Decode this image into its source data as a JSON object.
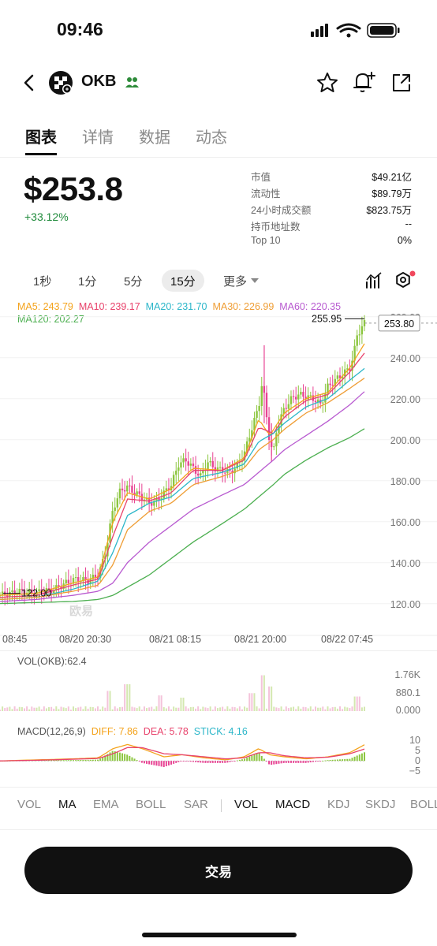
{
  "status_bar": {
    "time": "09:46"
  },
  "header": {
    "coin": "OKB"
  },
  "tabs": [
    {
      "label": "图表",
      "active": true
    },
    {
      "label": "详情",
      "active": false
    },
    {
      "label": "数据",
      "active": false
    },
    {
      "label": "动态",
      "active": false
    }
  ],
  "price": {
    "value": "$253.8",
    "change": "+33.12%"
  },
  "stats": [
    {
      "label": "市值",
      "value": "$49.21亿"
    },
    {
      "label": "流动性",
      "value": "$89.79万"
    },
    {
      "label": "24小时成交额",
      "value": "$823.75万"
    },
    {
      "label": "持币地址数",
      "value": "--"
    },
    {
      "label": "Top 10",
      "value": "0%"
    }
  ],
  "intervals": {
    "items": [
      "1秒",
      "1分",
      "5分",
      "15分"
    ],
    "active": "15分",
    "more": "更多"
  },
  "ma_legend": {
    "ma5": "MA5: 243.79",
    "ma10": "MA10: 239.17",
    "ma20": "MA20: 231.70",
    "ma30": "MA30: 226.99",
    "ma60": "MA60: 220.35",
    "ma120": "MA120: 202.27"
  },
  "chart_data": {
    "type": "candlestick",
    "y_ticks": [
      "260.00",
      "240.00",
      "220.00",
      "200.00",
      "180.00",
      "160.00",
      "140.00",
      "120.00"
    ],
    "ylim": [
      113,
      263
    ],
    "x_labels": [
      "08:45",
      "08/20 20:30",
      "08/21 08:15",
      "08/21 20:00",
      "08/22 07:45"
    ],
    "high_label": "255.95",
    "low_label": "122.00",
    "current_price_label": "253.80",
    "watermark": "欧易",
    "price_path": [
      [
        0,
        121
      ],
      [
        0.03,
        122
      ],
      [
        0.06,
        123
      ],
      [
        0.09,
        122
      ],
      [
        0.12,
        123
      ],
      [
        0.15,
        124
      ],
      [
        0.18,
        127
      ],
      [
        0.21,
        129
      ],
      [
        0.24,
        128
      ],
      [
        0.27,
        131
      ],
      [
        0.29,
        142
      ],
      [
        0.31,
        163
      ],
      [
        0.33,
        172
      ],
      [
        0.35,
        174
      ],
      [
        0.37,
        171
      ],
      [
        0.39,
        169
      ],
      [
        0.41,
        166
      ],
      [
        0.43,
        167
      ],
      [
        0.45,
        171
      ],
      [
        0.47,
        175
      ],
      [
        0.49,
        185
      ],
      [
        0.51,
        187
      ],
      [
        0.53,
        183
      ],
      [
        0.55,
        179
      ],
      [
        0.57,
        186
      ],
      [
        0.59,
        183
      ],
      [
        0.61,
        182
      ],
      [
        0.63,
        181
      ],
      [
        0.65,
        184
      ],
      [
        0.67,
        190
      ],
      [
        0.69,
        202
      ],
      [
        0.71,
        213
      ],
      [
        0.72,
        226
      ],
      [
        0.73,
        210
      ],
      [
        0.74,
        196
      ],
      [
        0.75,
        190
      ],
      [
        0.76,
        203
      ],
      [
        0.78,
        212
      ],
      [
        0.8,
        217
      ],
      [
        0.82,
        219
      ],
      [
        0.84,
        218
      ],
      [
        0.86,
        217
      ],
      [
        0.88,
        214
      ],
      [
        0.9,
        223
      ],
      [
        0.92,
        226
      ],
      [
        0.94,
        229
      ],
      [
        0.96,
        232
      ],
      [
        0.97,
        238
      ],
      [
        0.98,
        248
      ],
      [
        1.0,
        253.8
      ]
    ],
    "series": [
      {
        "name": "MA5",
        "color": "#f4a31c",
        "values": [
          [
            0,
            121
          ],
          [
            0.1,
            122
          ],
          [
            0.2,
            127
          ],
          [
            0.27,
            130
          ],
          [
            0.31,
            157
          ],
          [
            0.35,
            171
          ],
          [
            0.41,
            168
          ],
          [
            0.47,
            173
          ],
          [
            0.53,
            183
          ],
          [
            0.61,
            182
          ],
          [
            0.67,
            188
          ],
          [
            0.71,
            207
          ],
          [
            0.74,
            199
          ],
          [
            0.78,
            210
          ],
          [
            0.84,
            217
          ],
          [
            0.9,
            220
          ],
          [
            0.96,
            232
          ],
          [
            1.0,
            243.8
          ]
        ]
      },
      {
        "name": "MA10",
        "color": "#e8426b",
        "values": [
          [
            0,
            120
          ],
          [
            0.1,
            121
          ],
          [
            0.2,
            126
          ],
          [
            0.27,
            129
          ],
          [
            0.31,
            150
          ],
          [
            0.35,
            168
          ],
          [
            0.41,
            167
          ],
          [
            0.47,
            171
          ],
          [
            0.53,
            182
          ],
          [
            0.61,
            182
          ],
          [
            0.67,
            187
          ],
          [
            0.71,
            203
          ],
          [
            0.75,
            200
          ],
          [
            0.78,
            208
          ],
          [
            0.84,
            216
          ],
          [
            0.9,
            219
          ],
          [
            0.96,
            230
          ],
          [
            1.0,
            239.2
          ]
        ]
      },
      {
        "name": "MA20",
        "color": "#2bb6c9",
        "values": [
          [
            0,
            119
          ],
          [
            0.1,
            120
          ],
          [
            0.2,
            124
          ],
          [
            0.27,
            128
          ],
          [
            0.31,
            142
          ],
          [
            0.35,
            160
          ],
          [
            0.41,
            166
          ],
          [
            0.47,
            169
          ],
          [
            0.53,
            178
          ],
          [
            0.61,
            181
          ],
          [
            0.67,
            185
          ],
          [
            0.71,
            196
          ],
          [
            0.75,
            200
          ],
          [
            0.78,
            205
          ],
          [
            0.84,
            213
          ],
          [
            0.9,
            217
          ],
          [
            0.96,
            226
          ],
          [
            1.0,
            231.7
          ]
        ]
      },
      {
        "name": "MA30",
        "color": "#ef9d34",
        "values": [
          [
            0,
            119
          ],
          [
            0.1,
            120
          ],
          [
            0.2,
            123
          ],
          [
            0.27,
            126
          ],
          [
            0.31,
            136
          ],
          [
            0.35,
            153
          ],
          [
            0.41,
            162
          ],
          [
            0.47,
            166
          ],
          [
            0.53,
            175
          ],
          [
            0.61,
            179
          ],
          [
            0.67,
            183
          ],
          [
            0.71,
            192
          ],
          [
            0.75,
            197
          ],
          [
            0.78,
            202
          ],
          [
            0.84,
            210
          ],
          [
            0.9,
            215
          ],
          [
            0.96,
            222
          ],
          [
            1.0,
            227
          ]
        ]
      },
      {
        "name": "MA60",
        "color": "#b85ad0",
        "values": [
          [
            0,
            118
          ],
          [
            0.1,
            119
          ],
          [
            0.2,
            121
          ],
          [
            0.27,
            123
          ],
          [
            0.31,
            127
          ],
          [
            0.35,
            137
          ],
          [
            0.41,
            147
          ],
          [
            0.47,
            155
          ],
          [
            0.53,
            163
          ],
          [
            0.61,
            170
          ],
          [
            0.67,
            175
          ],
          [
            0.71,
            181
          ],
          [
            0.75,
            187
          ],
          [
            0.78,
            192
          ],
          [
            0.84,
            199
          ],
          [
            0.9,
            206
          ],
          [
            0.96,
            214
          ],
          [
            1.0,
            220.4
          ]
        ]
      },
      {
        "name": "MA120",
        "color": "#4caf50",
        "values": [
          [
            0,
            117
          ],
          [
            0.1,
            117.5
          ],
          [
            0.2,
            118
          ],
          [
            0.27,
            119
          ],
          [
            0.31,
            121
          ],
          [
            0.35,
            125
          ],
          [
            0.41,
            131
          ],
          [
            0.47,
            139
          ],
          [
            0.53,
            147
          ],
          [
            0.61,
            156
          ],
          [
            0.67,
            163
          ],
          [
            0.71,
            169
          ],
          [
            0.75,
            175
          ],
          [
            0.78,
            180
          ],
          [
            0.84,
            187
          ],
          [
            0.9,
            193
          ],
          [
            0.96,
            198
          ],
          [
            1.0,
            202.3
          ]
        ]
      }
    ]
  },
  "volume": {
    "label": "VOL(OKB):62.4",
    "ticks": [
      "1.76K",
      "880.1",
      "0.000"
    ],
    "max": 1760,
    "spikes": [
      [
        0.3,
        900
      ],
      [
        0.35,
        1200
      ],
      [
        0.44,
        700
      ],
      [
        0.5,
        600
      ],
      [
        0.69,
        800
      ],
      [
        0.72,
        1600
      ],
      [
        0.74,
        1100
      ],
      [
        0.98,
        650
      ]
    ]
  },
  "macd": {
    "label": "MACD(12,26,9)",
    "diff": "DIFF: 7.86",
    "dea": "DEA: 5.78",
    "stick": "STICK: 4.16",
    "ticks": [
      "10",
      "5",
      "0",
      "−5"
    ],
    "ylim": [
      -8,
      12
    ],
    "diff_color": "#f4a31c",
    "dea_color": "#e8426b",
    "stick_color": "#2bb6c9",
    "diff_path": [
      [
        0,
        0
      ],
      [
        0.1,
        0.5
      ],
      [
        0.2,
        1
      ],
      [
        0.27,
        1.5
      ],
      [
        0.31,
        6
      ],
      [
        0.35,
        8
      ],
      [
        0.39,
        6
      ],
      [
        0.45,
        2
      ],
      [
        0.5,
        3
      ],
      [
        0.56,
        1.5
      ],
      [
        0.62,
        0.5
      ],
      [
        0.67,
        2
      ],
      [
        0.71,
        6
      ],
      [
        0.74,
        3
      ],
      [
        0.78,
        2
      ],
      [
        0.84,
        1
      ],
      [
        0.9,
        2
      ],
      [
        0.96,
        4
      ],
      [
        1.0,
        7.9
      ]
    ],
    "dea_path": [
      [
        0,
        0
      ],
      [
        0.1,
        0.3
      ],
      [
        0.2,
        0.8
      ],
      [
        0.27,
        1.2
      ],
      [
        0.31,
        3.5
      ],
      [
        0.35,
        6.5
      ],
      [
        0.39,
        6.5
      ],
      [
        0.45,
        3.5
      ],
      [
        0.5,
        3
      ],
      [
        0.56,
        2
      ],
      [
        0.62,
        1
      ],
      [
        0.67,
        1.5
      ],
      [
        0.71,
        4
      ],
      [
        0.74,
        4
      ],
      [
        0.78,
        2.5
      ],
      [
        0.84,
        1.5
      ],
      [
        0.9,
        1.8
      ],
      [
        0.96,
        3.5
      ],
      [
        1.0,
        5.8
      ]
    ]
  },
  "indicator_tabs": [
    {
      "label": "VOL",
      "on": false
    },
    {
      "label": "MA",
      "on": true
    },
    {
      "label": "EMA",
      "on": false
    },
    {
      "label": "BOLL",
      "on": false
    },
    {
      "label": "SAR",
      "on": false
    },
    {
      "label": "VOL",
      "on": true
    },
    {
      "label": "MACD",
      "on": true
    },
    {
      "label": "KDJ",
      "on": false
    },
    {
      "label": "SKDJ",
      "on": false
    },
    {
      "label": "BOLL",
      "on": false
    }
  ],
  "trade_button": "交易"
}
